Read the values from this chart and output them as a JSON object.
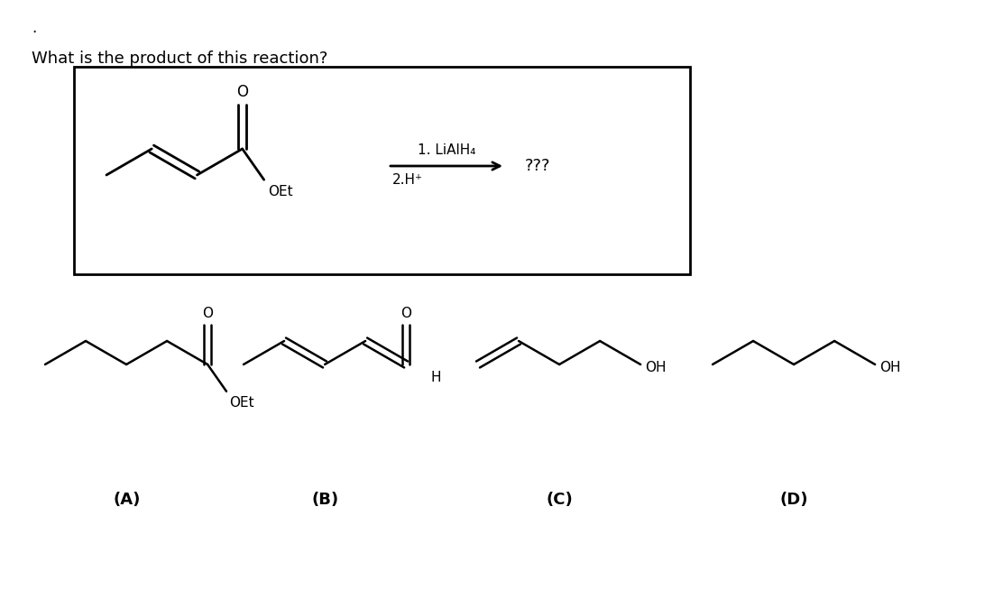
{
  "question_text": "What is the product of this reaction?",
  "reagent_line1": "1. LiAlH₄",
  "reagent_line2": "2.H⁺",
  "product_text": "???",
  "labels": [
    "(A)",
    "(B)",
    "(C)",
    "(D)"
  ],
  "background_color": "#ffffff",
  "line_color": "#000000",
  "font_size_title": 13,
  "font_size_label": 13,
  "font_size_reagent": 11,
  "font_size_atom": 11,
  "dot_text": "."
}
